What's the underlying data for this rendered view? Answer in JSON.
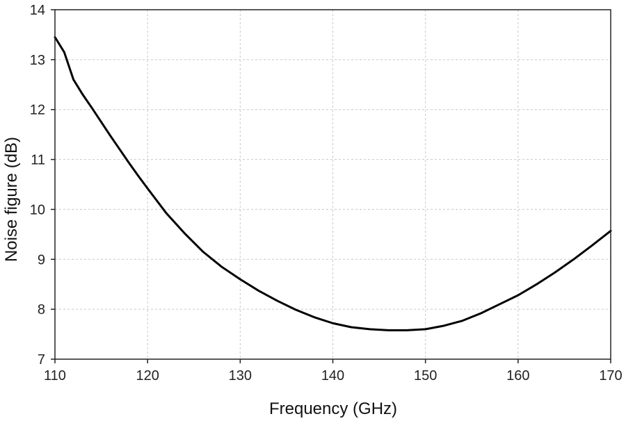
{
  "chart_data": {
    "type": "line",
    "title": "",
    "xlabel": "Frequency (GHz)",
    "ylabel": "Noise figure (dB)",
    "xlim": [
      110,
      170
    ],
    "ylim": [
      7,
      14
    ],
    "xticks": [
      110,
      120,
      130,
      140,
      150,
      160,
      170
    ],
    "yticks": [
      7,
      8,
      9,
      10,
      11,
      12,
      13,
      14
    ],
    "xtick_labels": [
      "110",
      "120",
      "130",
      "140",
      "150",
      "160",
      "170"
    ],
    "ytick_labels": [
      "7",
      "8",
      "9",
      "10",
      "11",
      "12",
      "13",
      "14"
    ],
    "grid": true,
    "legend": "none",
    "series": [
      {
        "color": "#000000",
        "x": [
          110,
          111,
          112,
          113,
          114,
          115,
          116,
          117,
          118,
          119,
          120,
          122,
          124,
          126,
          128,
          130,
          132,
          134,
          136,
          138,
          140,
          142,
          144,
          146,
          148,
          150,
          152,
          154,
          156,
          158,
          160,
          162,
          164,
          166,
          168,
          170
        ],
        "y": [
          13.45,
          13.15,
          12.6,
          12.3,
          12.03,
          11.75,
          11.47,
          11.2,
          10.93,
          10.67,
          10.42,
          9.93,
          9.52,
          9.15,
          8.85,
          8.6,
          8.37,
          8.17,
          7.99,
          7.84,
          7.72,
          7.64,
          7.6,
          7.58,
          7.58,
          7.6,
          7.67,
          7.77,
          7.92,
          8.1,
          8.28,
          8.5,
          8.74,
          9.0,
          9.28,
          9.57
        ]
      }
    ]
  }
}
